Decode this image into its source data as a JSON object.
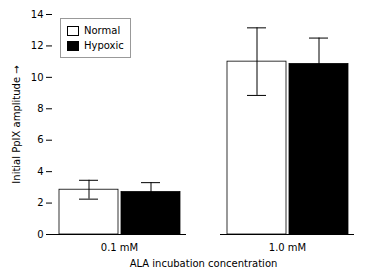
{
  "chart_data": {
    "type": "bar",
    "xlabel": "ALA incubation concentration",
    "ylabel": "Initial PpIX amplitude",
    "categories": [
      "0.1 mM",
      "1.0 mM"
    ],
    "series": [
      {
        "name": "Normal",
        "color": "white",
        "values": [
          2.85,
          11.0
        ],
        "errors": [
          0.6,
          2.15
        ]
      },
      {
        "name": "Hypoxic",
        "color": "black",
        "values": [
          2.7,
          10.85
        ],
        "errors": [
          0.6,
          1.65
        ]
      }
    ],
    "ylim": [
      0,
      14
    ],
    "yticks": [
      0,
      2,
      4,
      6,
      8,
      10,
      12,
      14
    ],
    "legend": "upper left",
    "grid": false
  }
}
